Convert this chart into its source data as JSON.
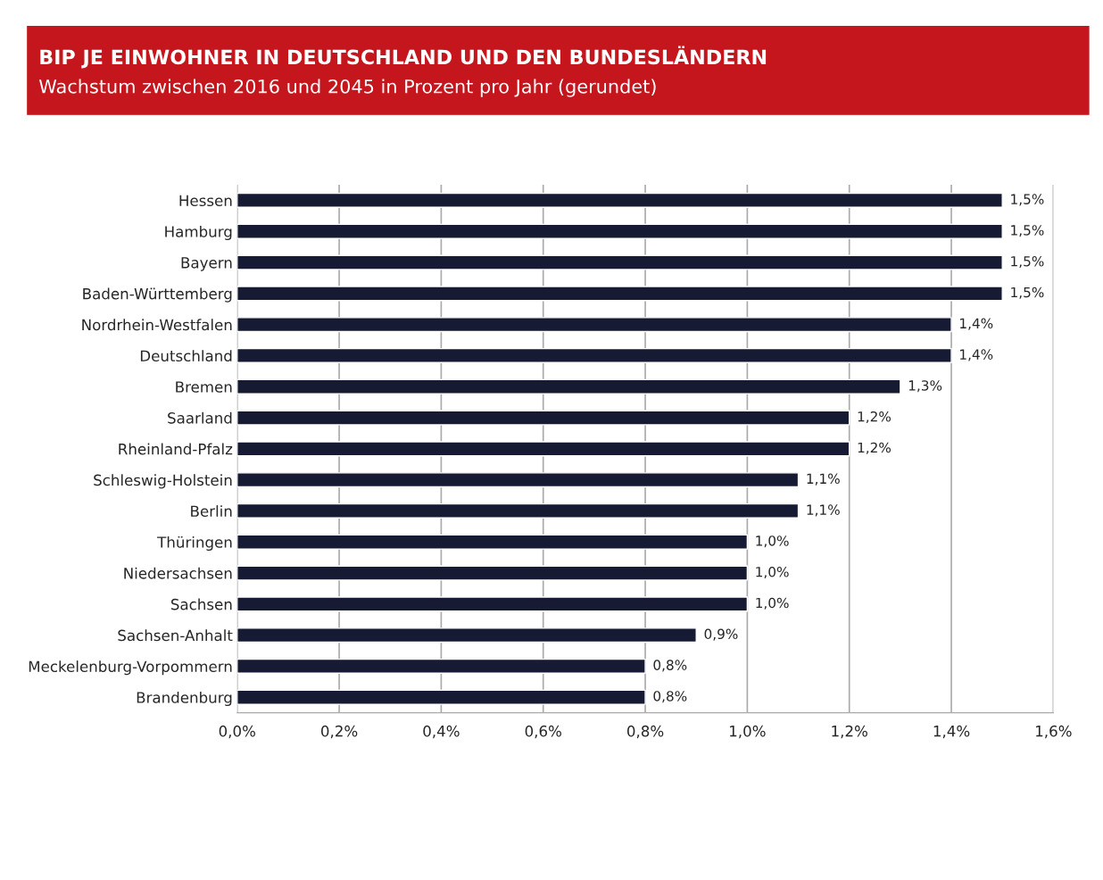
{
  "chart_data": {
    "type": "bar",
    "orientation": "horizontal",
    "title": "BIP JE EINWOHNER IN DEUTSCHLAND UND DEN BUNDESLÄNDERN",
    "subtitle": "Wachstum zwischen 2016 und 2045 in Prozent pro Jahr (gerundet)",
    "categories": [
      "Hessen",
      "Hamburg",
      "Bayern",
      "Baden-Württemberg",
      "Nordrhein-Westfalen",
      "Deutschland",
      "Bremen",
      "Saarland",
      "Rheinland-Pfalz",
      "Schleswig-Holstein",
      "Berlin",
      "Thüringen",
      "Niedersachsen",
      "Sachsen",
      "Sachsen-Anhalt",
      "Meckelenburg-Vorpommern",
      "Brandenburg"
    ],
    "values": [
      1.5,
      1.5,
      1.5,
      1.5,
      1.4,
      1.4,
      1.3,
      1.2,
      1.2,
      1.1,
      1.1,
      1.0,
      1.0,
      1.0,
      0.9,
      0.8,
      0.8
    ],
    "value_labels": [
      "1,5%",
      "1,5%",
      "1,5%",
      "1,5%",
      "1,4%",
      "1,4%",
      "1,3%",
      "1,2%",
      "1,2%",
      "1,1%",
      "1,1%",
      "1,0%",
      "1,0%",
      "1,0%",
      "0,9%",
      "0,8%",
      "0,8%"
    ],
    "color": "#161b33",
    "xlim": [
      0,
      1.6
    ],
    "xticks": [
      {
        "value": 0,
        "label": "0,0%"
      },
      {
        "value": 0.2,
        "label": "0,2%"
      },
      {
        "value": 0.4,
        "label": "0,4%"
      },
      {
        "value": 0.6,
        "label": "0,6%"
      },
      {
        "value": 0.8,
        "label": "0,8%"
      },
      {
        "value": 1.0,
        "label": "1,0%"
      },
      {
        "value": 1.2,
        "label": "1,2%"
      },
      {
        "value": 1.4,
        "label": "1,4%"
      },
      {
        "value": 1.6,
        "label": "1,6%"
      }
    ],
    "grid": "x"
  }
}
